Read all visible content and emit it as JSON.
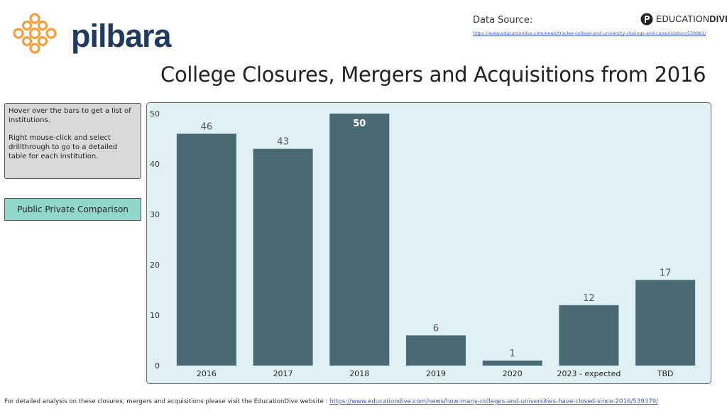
{
  "brand": {
    "name": "pilbara",
    "logo_icon": "pilbara-cross-logo",
    "color": "#1f3a5f",
    "accent": "#f5a03c"
  },
  "data_source": {
    "label": "Data Source:",
    "url": "https://www.educationdive.com/news/tracker-college-and-university-closings-and-consolidation/539961/"
  },
  "partner_logo": {
    "text_light": "EDUCATION",
    "text_bold": "DIVE"
  },
  "title": "College Closures, Mergers and Acquisitions from 2016",
  "info": {
    "line1": "Hover over the bars to get a list of institutions.",
    "line2": "Right mouse-click and select drillthrough to go to a detailed table for each institution."
  },
  "button": {
    "label": "Public Private Comparison"
  },
  "footer": {
    "text": "For detailed analysis on these closures, mergers and acquisitions please visit the EducationDive website : ",
    "url": "https://www.educationdive.com/news/how-many-colleges-and-universities-have-closed-since-2016/539379/"
  },
  "chart_data": {
    "type": "bar",
    "categories": [
      "2016",
      "2017",
      "2018",
      "2019",
      "2020",
      "2023 - expected",
      "TBD"
    ],
    "values": [
      46,
      43,
      50,
      6,
      1,
      12,
      17
    ],
    "highlighted_index": 2,
    "ylim": [
      0,
      50
    ],
    "yticks": [
      0,
      10,
      20,
      30,
      40,
      50
    ],
    "bar_color": "#4a6a73",
    "background": "#e0f1f6",
    "grid": false,
    "legend": "none"
  }
}
